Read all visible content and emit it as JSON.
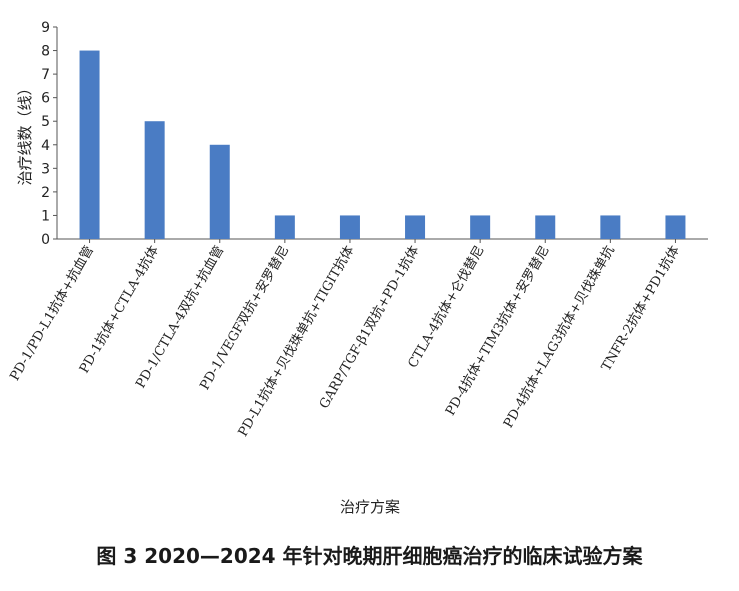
{
  "chart_data": {
    "type": "bar",
    "title": "",
    "ylabel": "治疗线数（线）",
    "xlabel": "治疗方案",
    "ylim": [
      0,
      9
    ],
    "yticks": [
      0,
      1,
      2,
      3,
      4,
      5,
      6,
      7,
      8,
      9
    ],
    "grid": false,
    "categories": [
      "PD-1/PD-L1抗体+抗血管",
      "PD-1抗体+CTLA-4抗体",
      "PD-1/CTLA-4双抗+抗血管",
      "PD-1/VEGF双抗+安罗替尼",
      "PD-L1抗体+贝伐珠单抗+TIGIT抗体",
      "GARP/TGF-β1双抗+PD-1抗体",
      "CTLA-4抗体+仑伐替尼",
      "PD-4抗体+TIM3抗体+安罗替尼",
      "PD-4抗体+LAG3抗体+贝伐珠单抗",
      "TNFR-2抗体+PD1抗体"
    ],
    "values": [
      8,
      5,
      4,
      1,
      1,
      1,
      1,
      1,
      1,
      1
    ],
    "bar_color": "#4a7cc4"
  },
  "figure": {
    "caption": "图 3 2020—2024 年针对晚期肝细胞癌治疗的临床试验方案"
  }
}
